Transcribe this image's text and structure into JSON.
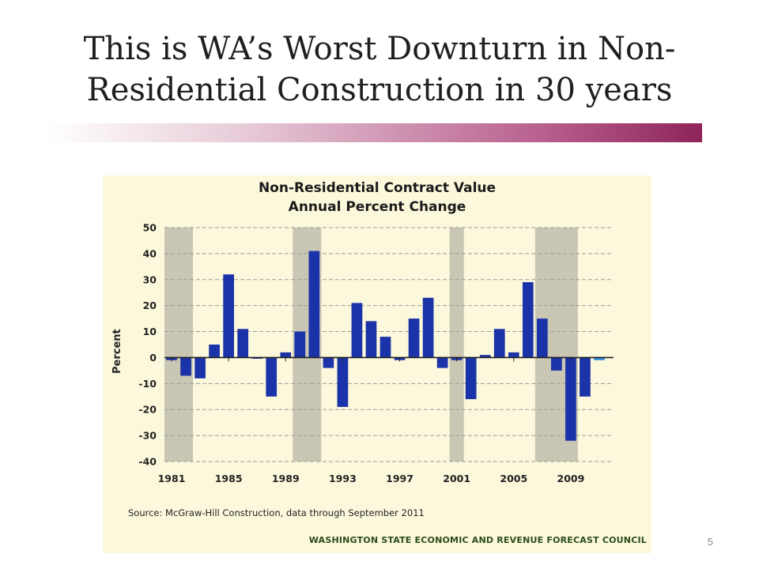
{
  "slide": {
    "title_line1": "This is WA’s Worst Downturn in Non-",
    "title_line2": "Residential Construction in 30 years",
    "page_number": "5"
  },
  "chart_data": {
    "type": "bar",
    "title": "Non-Residential Contract Value",
    "subtitle": "Annual Percent Change",
    "ylabel": "Percent",
    "xlabel": "",
    "ylim": [
      -40,
      50
    ],
    "yticks": [
      50,
      40,
      30,
      20,
      10,
      0,
      -10,
      -20,
      -30,
      -40
    ],
    "xtick_labels": [
      "1981",
      "1985",
      "1989",
      "1993",
      "1997",
      "2001",
      "2005",
      "2009"
    ],
    "grid": true,
    "bar_color": "#1a33a8",
    "last_bar_color": "#2f8fe0",
    "shade_color": "#c9c6b4",
    "recession_shading": [
      [
        1981,
        1982
      ],
      [
        1990,
        1991
      ],
      [
        2001,
        2001
      ],
      [
        2007,
        2009
      ]
    ],
    "categories": [
      1981,
      1982,
      1983,
      1984,
      1985,
      1986,
      1987,
      1988,
      1989,
      1990,
      1991,
      1992,
      1993,
      1994,
      1995,
      1996,
      1997,
      1998,
      1999,
      2000,
      2001,
      2002,
      2003,
      2004,
      2005,
      2006,
      2007,
      2008,
      2009,
      2010,
      2011
    ],
    "values": [
      -1,
      -7,
      -8,
      5,
      32,
      11,
      0,
      -15,
      2,
      10,
      41,
      -4,
      -19,
      21,
      14,
      8,
      -1,
      15,
      23,
      -4,
      -1,
      -16,
      1,
      11,
      2,
      29,
      15,
      -5,
      -32,
      -15,
      -1
    ],
    "source": "Source: McGraw-Hill Construction, data through September 2011",
    "credit": "WASHINGTON STATE ECONOMIC AND REVENUE FORECAST COUNCIL"
  }
}
